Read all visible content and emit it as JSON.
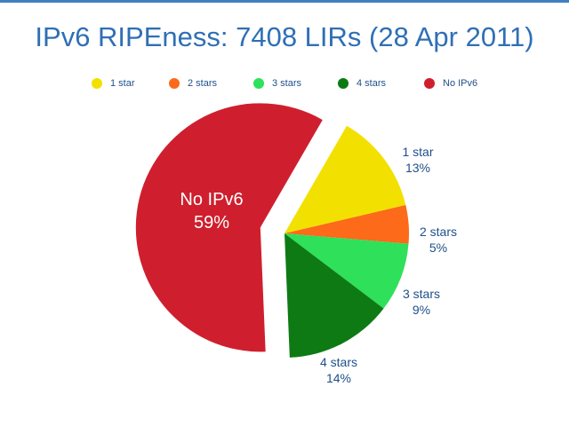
{
  "title": "IPv6 RIPEness: 7408 LIRs (28 Apr 2011)",
  "chart_data": {
    "type": "pie",
    "title": "IPv6 RIPEness: 7408 LIRs (28 Apr 2011)",
    "legend": "top",
    "slices": [
      {
        "name": "1 star",
        "value": 13,
        "label": "13%",
        "color": "#f2e100"
      },
      {
        "name": "2 stars",
        "value": 5,
        "label": "5%",
        "color": "#fc6a1a"
      },
      {
        "name": "3 stars",
        "value": 9,
        "label": "9%",
        "color": "#2ee05a"
      },
      {
        "name": "4 stars",
        "value": 14,
        "label": "14%",
        "color": "#0e7a14"
      },
      {
        "name": "No IPv6",
        "value": 59,
        "label": "59%",
        "color": "#cf1f2e",
        "exploded": true
      }
    ]
  }
}
